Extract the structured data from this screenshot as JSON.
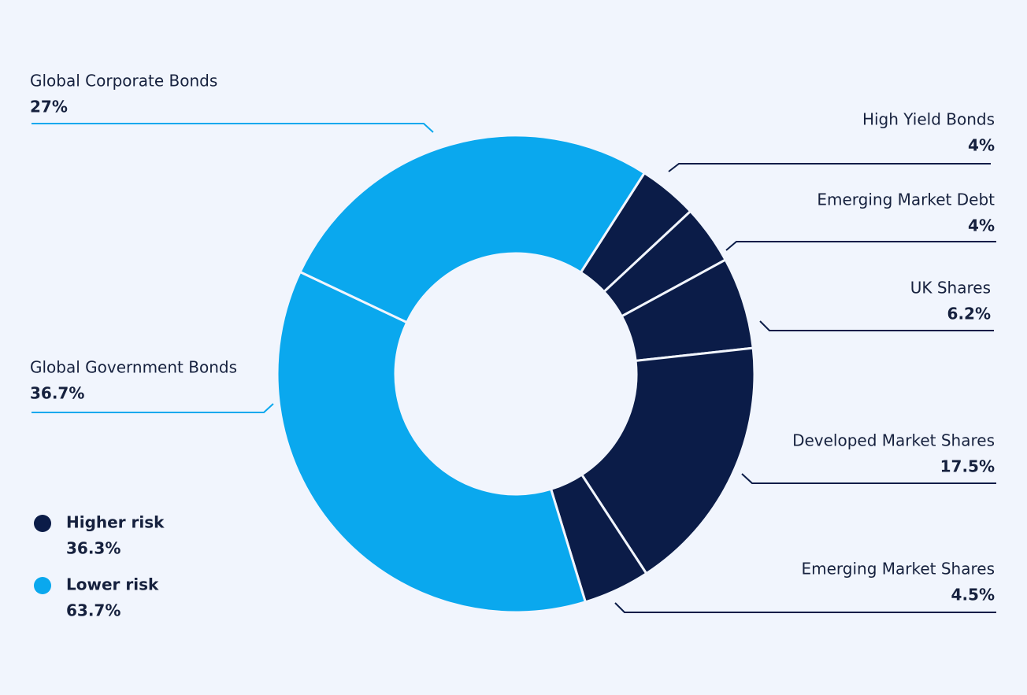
{
  "chart_data": {
    "type": "donut",
    "categories": [
      "High Yield Bonds",
      "Emerging Market Debt",
      "UK Shares",
      "Developed Market Shares",
      "Emerging Market Shares",
      "Global Government Bonds",
      "Global Corporate Bonds"
    ],
    "values": [
      4,
      4,
      6.2,
      17.5,
      4.5,
      36.7,
      27
    ],
    "value_labels": [
      "4%",
      "4%",
      "6.2%",
      "17.5%",
      "4.5%",
      "36.7%",
      "27%"
    ],
    "colors": [
      "#0b1c48",
      "#0b1c48",
      "#0b1c48",
      "#0b1c48",
      "#0b1c48",
      "#0aa8ee",
      "#0aa8ee"
    ],
    "groups": {
      "names": [
        "Higher risk",
        "Lower risk"
      ],
      "colors": [
        "#0b1c48",
        "#0aa8ee"
      ],
      "values": [
        36.3,
        63.7
      ],
      "value_labels": [
        "36.3%",
        "63.7%"
      ]
    }
  }
}
